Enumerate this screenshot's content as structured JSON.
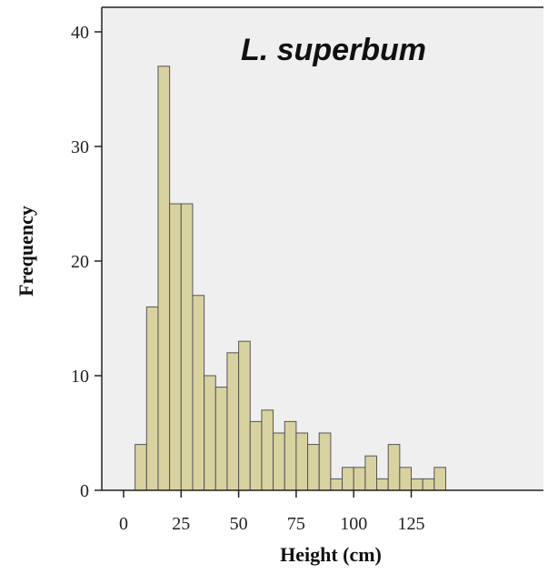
{
  "chart_data": {
    "type": "bar",
    "title": "L. superbum",
    "xlabel": "Height (cm)",
    "ylabel": "Frequency",
    "xlim": [
      -10,
      140
    ],
    "ylim": [
      0,
      42
    ],
    "xticks": [
      0,
      25,
      50,
      75,
      100,
      125
    ],
    "yticks": [
      0,
      10,
      20,
      30,
      40
    ],
    "bin_width": 5,
    "bin_start": 5,
    "values": [
      4,
      16,
      37,
      25,
      25,
      17,
      10,
      9,
      12,
      13,
      6,
      7,
      5,
      6,
      5,
      4,
      5,
      1,
      2,
      2,
      3,
      1,
      4,
      2,
      1,
      1,
      2
    ],
    "grid": false,
    "plot_background": "#efefef",
    "bar_color": "#d8d2a0"
  }
}
